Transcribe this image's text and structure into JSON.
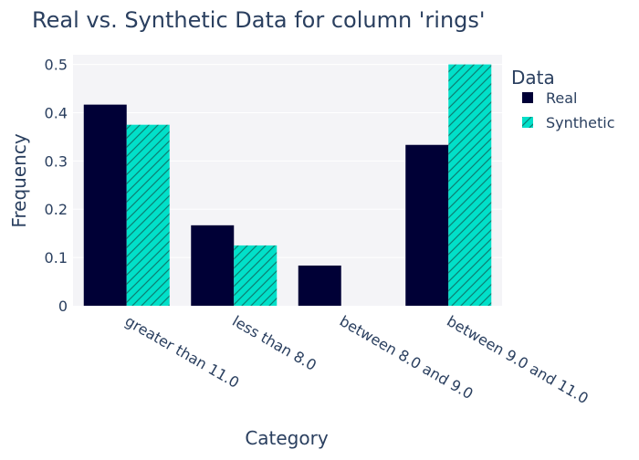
{
  "chart_data": {
    "type": "bar",
    "title": "Real vs. Synthetic Data for column 'rings'",
    "xlabel": "Category",
    "ylabel": "Frequency",
    "categories": [
      "greater than 11.0",
      "less than 8.0",
      "between 8.0 and 9.0",
      "between 9.0 and 11.0"
    ],
    "series": [
      {
        "name": "Real",
        "values": [
          0.4167,
          0.1667,
          0.0833,
          0.3333
        ],
        "color": "#000036",
        "pattern": "solid"
      },
      {
        "name": "Synthetic",
        "values": [
          0.375,
          0.125,
          0,
          0.5
        ],
        "color": "#01E0C9",
        "pattern": "diagonal-hatch"
      }
    ],
    "ylim": [
      0,
      0.52
    ],
    "yticks": [
      0,
      0.1,
      0.2,
      0.3,
      0.4,
      0.5
    ],
    "ytick_labels": [
      "0",
      "0.1",
      "0.2",
      "0.3",
      "0.4",
      "0.5"
    ],
    "legend": {
      "title": "Data",
      "placement": "top-right"
    },
    "grid": true,
    "colors": {
      "plot_background": "#F4F4F7",
      "text": "#2A3F5F",
      "grid": "#FFFFFF"
    }
  }
}
